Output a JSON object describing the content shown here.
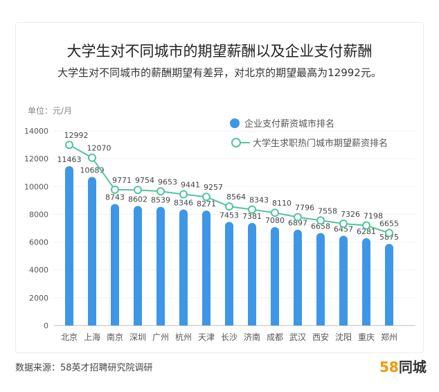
{
  "title": "大学生对不同城市的期望薪酬以及企业支付薪酬",
  "subtitle": "大学生对不同城市的薪酬期望有差异，对北京的期望最高为12992元。",
  "footer": {
    "source": "数据来源：58英才招聘研究院调研",
    "logo_number": "58",
    "logo_text": "同城"
  },
  "chart_data": {
    "type": "bar",
    "unit_label": "单位：元/月",
    "categories": [
      "北京",
      "上海",
      "南京",
      "深圳",
      "广州",
      "杭州",
      "天津",
      "长沙",
      "济南",
      "成都",
      "武汉",
      "西安",
      "沈阳",
      "重庆",
      "郑州"
    ],
    "ylim": [
      0,
      14000
    ],
    "yticks": [
      0,
      2000,
      4000,
      6000,
      8000,
      10000,
      12000,
      14000
    ],
    "grid": true,
    "legend_position": "top-right",
    "series": [
      {
        "name": "企业支付薪资城市排名",
        "type": "bar",
        "color": "#3d97e6",
        "values": [
          11463,
          10689,
          8743,
          8602,
          8539,
          8346,
          8271,
          7453,
          7381,
          7080,
          6897,
          6658,
          6457,
          6281,
          5875
        ]
      },
      {
        "name": "大学生求职热门城市期望薪资排名",
        "type": "line",
        "color": "#52c59a",
        "values": [
          12992,
          12070,
          9771,
          9754,
          9653,
          9441,
          9257,
          8564,
          8343,
          8110,
          7796,
          7558,
          7326,
          7198,
          6655
        ]
      }
    ]
  }
}
